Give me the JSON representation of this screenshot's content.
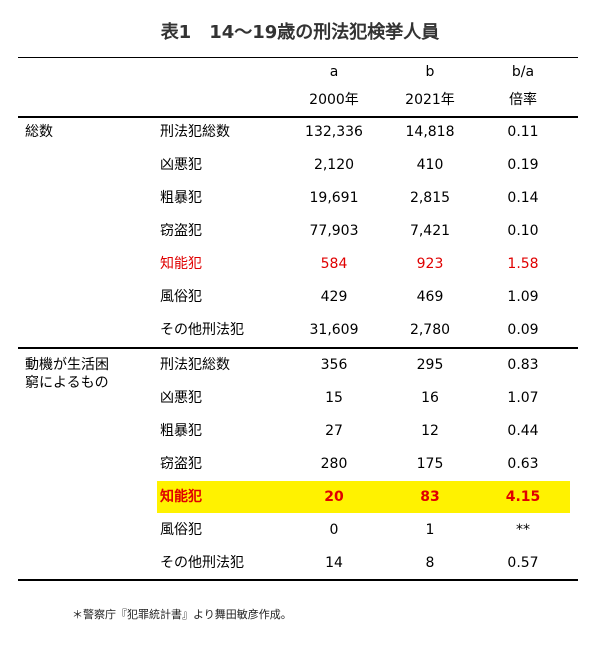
{
  "title": "表1　14～19歳の刑法犯検挙人員",
  "header": {
    "row1": [
      "a",
      "b",
      "b/a"
    ],
    "row2": [
      "2000年",
      "2021年",
      "倍率"
    ]
  },
  "groups": [
    {
      "label": "総数",
      "rows": [
        [
          "刑法犯総数",
          "132,336",
          "14,818",
          "0.11"
        ],
        [
          "凶悪犯",
          "2,120",
          "410",
          "0.19"
        ],
        [
          "粗暴犯",
          "19,691",
          "2,815",
          "0.14"
        ],
        [
          "窃盗犯",
          "77,903",
          "7,421",
          "0.10"
        ],
        [
          "知能犯",
          "584",
          "923",
          "1.58"
        ],
        [
          "風俗犯",
          "429",
          "469",
          "1.09"
        ],
        [
          "その他刑法犯",
          "31,609",
          "2,780",
          "0.09"
        ]
      ]
    },
    {
      "label": "動機が生活困窮によるもの",
      "rows": [
        [
          "刑法犯総数",
          "356",
          "295",
          "0.83"
        ],
        [
          "凶悪犯",
          "15",
          "16",
          "1.07"
        ],
        [
          "粗暴犯",
          "27",
          "12",
          "0.44"
        ],
        [
          "窃盗犯",
          "280",
          "175",
          "0.63"
        ],
        [
          "知能犯",
          "20",
          "83",
          "4.15"
        ],
        [
          "風俗犯",
          "0",
          "1",
          "**"
        ],
        [
          "その他刑法犯",
          "14",
          "8",
          "0.57"
        ]
      ]
    }
  ],
  "footnote": "＊警察庁『犯罪統計書』より舞田敏彦作成。"
}
